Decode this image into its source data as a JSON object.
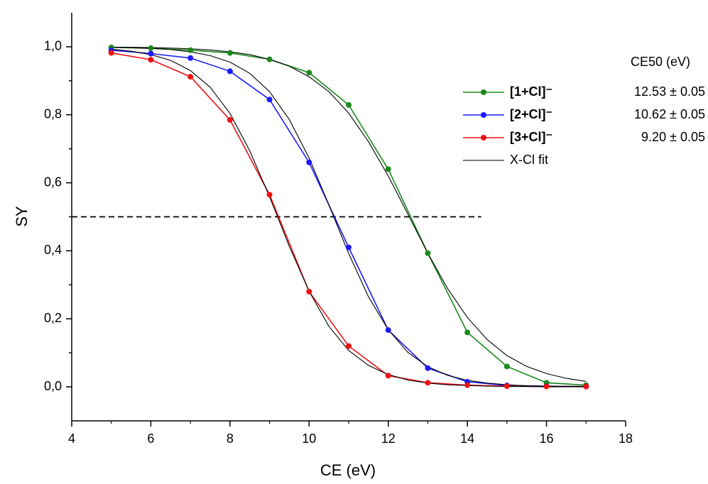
{
  "chart_data": {
    "type": "line",
    "x_label": "CE (eV)",
    "y_label": "SY",
    "x": [
      5,
      6,
      7,
      8,
      9,
      10,
      11,
      12,
      13,
      14,
      15,
      16,
      17
    ],
    "series": [
      {
        "name": "[1+Cl]⁻",
        "color": "#1a8a1a",
        "ce50": "12.53 ± 0.05",
        "values": [
          0.998,
          0.996,
          0.99,
          0.982,
          0.963,
          0.924,
          0.829,
          0.64,
          0.393,
          0.16,
          0.06,
          0.012,
          0.005
        ]
      },
      {
        "name": "[2+Cl]⁻",
        "color": "#1a1aff",
        "ce50": "10.62 ± 0.05",
        "values": [
          0.99,
          0.98,
          0.967,
          0.928,
          0.845,
          0.66,
          0.41,
          0.167,
          0.055,
          0.015,
          0.004,
          0.002,
          0.001
        ]
      },
      {
        "name": "[3+Cl]⁻",
        "color": "#ee1111",
        "ce50": "9.20 ± 0.05",
        "values": [
          0.982,
          0.962,
          0.912,
          0.785,
          0.565,
          0.28,
          0.12,
          0.033,
          0.012,
          0.005,
          0.002,
          0.001,
          0.001
        ]
      }
    ],
    "fit": {
      "name": "X-Cl fit",
      "color": "#000000",
      "x": [
        5,
        5.5,
        6,
        6.5,
        7,
        7.5,
        8,
        8.5,
        9,
        9.5,
        10,
        10.5,
        11,
        11.5,
        12,
        12.5,
        13,
        13.5,
        14,
        14.5,
        15,
        15.5,
        16,
        16.5,
        17
      ],
      "curves": [
        [
          0.999,
          0.9985,
          0.9976,
          0.9962,
          0.994,
          0.9906,
          0.985,
          0.977,
          0.963,
          0.943,
          0.912,
          0.868,
          0.805,
          0.721,
          0.62,
          0.507,
          0.393,
          0.289,
          0.204,
          0.139,
          0.092,
          0.06,
          0.039,
          0.025,
          0.016
        ],
        [
          0.9985,
          0.997,
          0.995,
          0.992,
          0.985,
          0.974,
          0.955,
          0.922,
          0.868,
          0.786,
          0.673,
          0.535,
          0.392,
          0.265,
          0.168,
          0.101,
          0.059,
          0.034,
          0.019,
          0.011,
          0.006,
          0.003,
          0.002,
          0.001,
          0.001
        ],
        [
          0.993,
          0.987,
          0.977,
          0.96,
          0.93,
          0.881,
          0.804,
          0.694,
          0.559,
          0.413,
          0.281,
          0.178,
          0.107,
          0.063,
          0.036,
          0.02,
          0.011,
          0.006,
          0.004,
          0.002,
          0.001,
          0.001,
          0,
          0,
          0
        ]
      ]
    },
    "legend_header": "CE50 (eV)",
    "reference_line": {
      "y": 0.5,
      "x": [
        4,
        14.35
      ]
    },
    "xlim": [
      4,
      18
    ],
    "xticks": [
      4,
      6,
      8,
      10,
      12,
      14,
      16,
      18
    ],
    "ylim": [
      -0.1,
      1.1
    ],
    "yticks": [
      {
        "value": 0,
        "label": "0,0"
      },
      {
        "value": 0.2,
        "label": "0,2"
      },
      {
        "value": 0.4,
        "label": "0,4"
      },
      {
        "value": 0.6,
        "label": "0,6"
      },
      {
        "value": 0.8,
        "label": "0,8"
      },
      {
        "value": 1,
        "label": "1,0"
      }
    ]
  }
}
